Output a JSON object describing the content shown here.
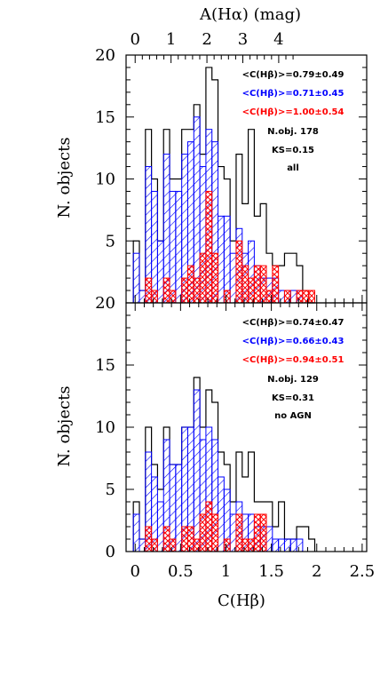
{
  "chart_data": [
    {
      "type": "histogram",
      "panel": "top",
      "xlabel": "",
      "ylabel": "N. objects",
      "top_axis_label": "A(Hα)   (mag)",
      "top_axis_ticks": [
        "0",
        "1",
        "2",
        "3",
        "4"
      ],
      "xlim": [
        -0.1,
        2.55
      ],
      "ylim": [
        0,
        20
      ],
      "y_ticks": [
        "5",
        "10",
        "15",
        "20"
      ],
      "bin_width": 0.0666,
      "bin_start": -0.02,
      "series": [
        {
          "name": "all",
          "color": "#000000",
          "style": "outline",
          "values": [
            5,
            1,
            14,
            10,
            5,
            14,
            10,
            10,
            14,
            14,
            16,
            12,
            19,
            18,
            11,
            10,
            5,
            12,
            8,
            14,
            7,
            8,
            4,
            3,
            3,
            4,
            4,
            3,
            1,
            0
          ]
        },
        {
          "name": "blue",
          "color": "#0000ff",
          "style": "hatch",
          "values": [
            4,
            1,
            11,
            9,
            5,
            12,
            9,
            9,
            12,
            13,
            15,
            11,
            14,
            13,
            7,
            7,
            4,
            6,
            4,
            5,
            3,
            2,
            2,
            2,
            1,
            1,
            1,
            1,
            0,
            0
          ]
        },
        {
          "name": "red",
          "color": "#ff0000",
          "style": "crosshatch",
          "values": [
            0,
            0,
            2,
            1,
            0,
            2,
            1,
            0,
            2,
            3,
            2,
            4,
            9,
            4,
            0,
            1,
            0,
            5,
            3,
            2,
            3,
            3,
            1,
            3,
            0,
            1,
            0,
            1,
            1,
            1
          ]
        }
      ],
      "annotations": [
        {
          "text": "<C(Hβ)>=0.79±0.49",
          "color": "#000000"
        },
        {
          "text": "<C(Hβ)>=0.71±0.45",
          "color": "#0000ff"
        },
        {
          "text": "<C(Hβ)>=1.00±0.54",
          "color": "#ff0000"
        },
        {
          "text": "N.obj. 178",
          "color": "#000000"
        },
        {
          "text": "KS=0.15",
          "color": "#000000"
        },
        {
          "text": "all",
          "color": "#000000"
        }
      ]
    },
    {
      "type": "histogram",
      "panel": "bottom",
      "xlabel": "C(Hβ)",
      "ylabel": "N. objects",
      "x_ticks": [
        "0",
        "0.5",
        "1",
        "1.5",
        "2",
        "2.5"
      ],
      "xlim": [
        -0.1,
        2.55
      ],
      "ylim": [
        0,
        20
      ],
      "y_ticks": [
        "0",
        "5",
        "10",
        "15",
        "20"
      ],
      "bin_width": 0.0666,
      "bin_start": -0.02,
      "series": [
        {
          "name": "no AGN",
          "color": "#000000",
          "style": "outline",
          "values": [
            4,
            1,
            10,
            7,
            5,
            10,
            7,
            7,
            10,
            10,
            14,
            10,
            13,
            12,
            8,
            7,
            4,
            8,
            6,
            8,
            4,
            4,
            4,
            2,
            4,
            1,
            1,
            2,
            2,
            1
          ]
        },
        {
          "name": "blue",
          "color": "#0000ff",
          "style": "hatch",
          "values": [
            3,
            1,
            8,
            6,
            4,
            9,
            7,
            7,
            10,
            10,
            13,
            9,
            10,
            9,
            6,
            5,
            3,
            4,
            3,
            3,
            2,
            2,
            2,
            1,
            1,
            1,
            1,
            1,
            0,
            0
          ]
        },
        {
          "name": "red",
          "color": "#ff0000",
          "style": "crosshatch",
          "values": [
            0,
            0,
            2,
            1,
            0,
            2,
            1,
            0,
            2,
            2,
            1,
            3,
            4,
            3,
            0,
            1,
            0,
            3,
            1,
            1,
            3,
            3,
            0,
            0,
            0,
            0,
            0,
            0,
            0,
            0
          ]
        }
      ],
      "annotations": [
        {
          "text": "<C(Hβ)>=0.74±0.47",
          "color": "#000000"
        },
        {
          "text": "<C(Hβ)>=0.66±0.43",
          "color": "#0000ff"
        },
        {
          "text": "<C(Hβ)>=0.94±0.51",
          "color": "#ff0000"
        },
        {
          "text": "N.obj. 129",
          "color": "#000000"
        },
        {
          "text": "KS=0.31",
          "color": "#000000"
        },
        {
          "text": "no AGN",
          "color": "#000000"
        }
      ]
    }
  ]
}
